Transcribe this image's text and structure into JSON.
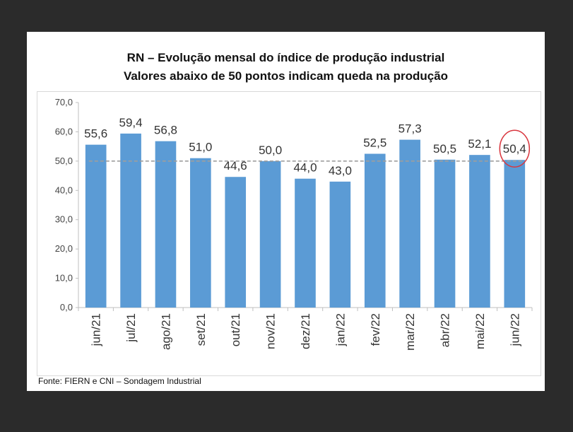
{
  "title": {
    "line1": "RN – Evolução mensal do índice de produção industrial",
    "line2": "Valores abaixo de 50 pontos indicam queda na produção"
  },
  "source": "Fonte: FIERN e CNI – Sondagem Industrial",
  "chart_data": {
    "type": "bar",
    "title": "RN – Evolução mensal do índice de produção industrial",
    "subtitle": "Valores abaixo de 50 pontos indicam queda na produção",
    "categories": [
      "jun/21",
      "jul/21",
      "ago/21",
      "set/21",
      "out/21",
      "nov/21",
      "dez/21",
      "jan/22",
      "fev/22",
      "mar/22",
      "abr/22",
      "mai/22",
      "jun/22"
    ],
    "values": [
      55.6,
      59.4,
      56.8,
      51.0,
      44.6,
      50.0,
      44.0,
      43.0,
      52.5,
      57.3,
      50.5,
      52.1,
      50.4
    ],
    "value_labels": [
      "55,6",
      "59,4",
      "56,8",
      "51,0",
      "44,6",
      "50,0",
      "44,0",
      "43,0",
      "52,5",
      "57,3",
      "50,5",
      "52,1",
      "50,4"
    ],
    "yticks": [
      "0,0",
      "10,0",
      "20,0",
      "30,0",
      "40,0",
      "50,0",
      "60,0",
      "70,0"
    ],
    "ylim": [
      0,
      70
    ],
    "xlabel": "",
    "ylabel": "",
    "reference_line": 50,
    "highlighted_category": "jun/22",
    "grid": false,
    "colors": {
      "bar": "#5b9bd5",
      "reference_line": "#9e9e9e",
      "highlight_circle": "#d9363e"
    }
  }
}
